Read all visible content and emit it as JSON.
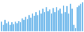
{
  "chart_data": {
    "type": "bar",
    "categories": [
      null,
      null,
      null,
      null,
      null,
      null,
      null,
      null,
      null,
      null,
      null,
      null,
      null,
      null,
      null,
      null,
      null,
      null,
      null,
      null,
      null,
      null,
      null,
      null,
      null,
      null,
      null,
      null,
      null,
      null,
      null,
      null,
      null,
      null,
      null,
      null,
      null,
      null,
      null,
      null,
      null,
      null,
      null,
      null,
      null,
      null,
      null,
      null
    ],
    "values": [
      30,
      20,
      35,
      25,
      30,
      20,
      28,
      22,
      30,
      25,
      32,
      28,
      40,
      35,
      45,
      38,
      50,
      42,
      55,
      48,
      60,
      50,
      65,
      55,
      70,
      60,
      75,
      62,
      68,
      55,
      72,
      60,
      75,
      65,
      70,
      55,
      80,
      60,
      78,
      55,
      85,
      70,
      20,
      10,
      75,
      80,
      85,
      90
    ],
    "color": "#5baee8",
    "ylim": [
      0,
      95
    ],
    "grid": false,
    "tick_labels": false
  }
}
